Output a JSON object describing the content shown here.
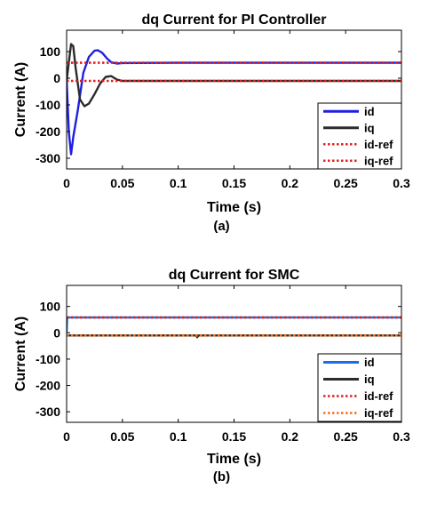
{
  "chart_data": [
    {
      "type": "line",
      "title": "dq Current for PI Controller",
      "xlabel": "Time (s)",
      "ylabel": "Current (A)",
      "caption": "(a)",
      "xlim": [
        0,
        0.3
      ],
      "ylim": [
        -340,
        180
      ],
      "xticks": [
        "0",
        "0.05",
        "0.1",
        "0.15",
        "0.2",
        "0.25",
        "0.3"
      ],
      "yticks": [
        "100",
        "0",
        "-100",
        "-200",
        "-300"
      ],
      "legend_position": "bottom-right",
      "series": [
        {
          "name": "id",
          "color": "#1f1fe0",
          "style": "solid",
          "x": [
            0,
            0.002,
            0.004,
            0.006,
            0.01,
            0.015,
            0.02,
            0.025,
            0.028,
            0.032,
            0.036,
            0.04,
            0.045,
            0.05,
            0.1,
            0.15,
            0.2,
            0.25,
            0.3
          ],
          "values": [
            -5,
            -200,
            -285,
            -220,
            -120,
            20,
            80,
            103,
            105,
            95,
            75,
            60,
            55,
            57,
            58,
            58,
            58,
            58,
            58
          ]
        },
        {
          "name": "iq",
          "color": "#2b2b2b",
          "style": "solid",
          "x": [
            0,
            0.002,
            0.004,
            0.006,
            0.008,
            0.012,
            0.016,
            0.02,
            0.025,
            0.03,
            0.035,
            0.04,
            0.045,
            0.05,
            0.1,
            0.15,
            0.2,
            0.25,
            0.3
          ],
          "values": [
            -10,
            60,
            128,
            120,
            40,
            -80,
            -105,
            -95,
            -60,
            -20,
            5,
            8,
            -5,
            -10,
            -10,
            -10,
            -10,
            -10,
            -10
          ]
        },
        {
          "name": "id-ref",
          "color": "#e02020",
          "style": "dotted",
          "x": [
            0,
            0.3
          ],
          "values": [
            58,
            58
          ]
        },
        {
          "name": "iq-ref",
          "color": "#e02020",
          "style": "dotted",
          "x": [
            0,
            0.3
          ],
          "values": [
            -10,
            -10
          ]
        }
      ]
    },
    {
      "type": "line",
      "title": "dq Current for SMC",
      "xlabel": "Time (s)",
      "ylabel": "Current (A)",
      "caption": "(b)",
      "xlim": [
        0,
        0.3
      ],
      "ylim": [
        -340,
        180
      ],
      "xticks": [
        "0",
        "0.05",
        "0.1",
        "0.15",
        "0.2",
        "0.25",
        "0.3"
      ],
      "yticks": [
        "100",
        "0",
        "-100",
        "-200",
        "-300"
      ],
      "legend_position": "bottom-right",
      "series": [
        {
          "name": "id",
          "color": "#1a6fe6",
          "style": "solid",
          "x": [
            0,
            0.0005,
            0.001,
            0.3
          ],
          "values": [
            0,
            58,
            58,
            58
          ]
        },
        {
          "name": "iq",
          "color": "#2b2b2b",
          "style": "solid",
          "x": [
            0,
            0.116,
            0.117,
            0.118,
            0.119,
            0.3
          ],
          "values": [
            -10,
            -10,
            -17,
            -10,
            -10,
            -10
          ]
        },
        {
          "name": "id-ref",
          "color": "#e02020",
          "style": "dotted",
          "x": [
            0,
            0.3
          ],
          "values": [
            58,
            58
          ]
        },
        {
          "name": "iq-ref",
          "color": "#f07020",
          "style": "dotted",
          "x": [
            0,
            0.3
          ],
          "values": [
            -10,
            -10
          ]
        }
      ]
    }
  ]
}
